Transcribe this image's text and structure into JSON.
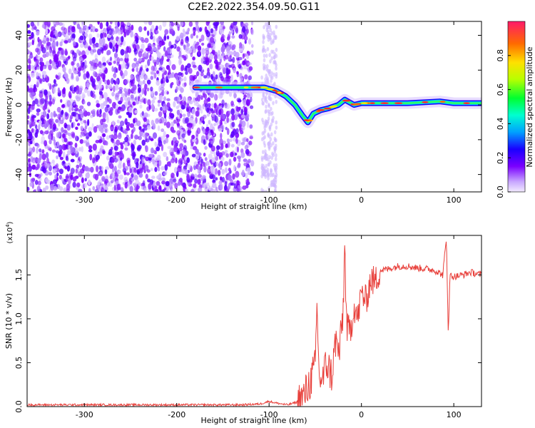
{
  "title": "C2E2.2022.354.09.50.G11",
  "chart_data": [
    {
      "type": "heatmap",
      "name": "spectrogram",
      "xlabel": "Height of straight line (km)",
      "ylabel": "Frequency (Hz)",
      "xlim": [
        -362,
        130
      ],
      "ylim": [
        -50,
        48
      ],
      "xticks": [
        -300,
        -200,
        -100,
        0,
        100
      ],
      "yticks": [
        -40,
        -20,
        0,
        20,
        40
      ],
      "colorbar": {
        "label": "Normalized spectral amplitude",
        "range": [
          0,
          1
        ],
        "ticks": [
          0.0,
          0.2,
          0.4,
          0.6,
          0.8
        ],
        "colormap": "rainbow",
        "low_color": "#f2eaff",
        "high_color": "#ff1a6a"
      },
      "noise_region": [
        -362,
        -118
      ],
      "signal_track": [
        {
          "x": -180,
          "y": 10
        },
        {
          "x": -150,
          "y": 10
        },
        {
          "x": -118,
          "y": 10
        },
        {
          "x": -105,
          "y": 10
        },
        {
          "x": -92,
          "y": 8
        },
        {
          "x": -82,
          "y": 5
        },
        {
          "x": -72,
          "y": 0
        },
        {
          "x": -64,
          "y": -6
        },
        {
          "x": -58,
          "y": -10
        },
        {
          "x": -52,
          "y": -5
        },
        {
          "x": -44,
          "y": -3
        },
        {
          "x": -36,
          "y": -2
        },
        {
          "x": -25,
          "y": 0
        },
        {
          "x": -18,
          "y": 3
        },
        {
          "x": -8,
          "y": 0
        },
        {
          "x": 0,
          "y": 1
        },
        {
          "x": 20,
          "y": 1
        },
        {
          "x": 50,
          "y": 1
        },
        {
          "x": 85,
          "y": 2
        },
        {
          "x": 100,
          "y": 1
        },
        {
          "x": 130,
          "y": 1
        }
      ]
    },
    {
      "type": "line",
      "name": "snr",
      "xlabel": "Height of straight line (km)",
      "ylabel": "SNR (10 * v/v)",
      "scale_label": "(x10",
      "scale_exp": "4",
      "scale_close": ")",
      "xlim": [
        -362,
        130
      ],
      "ylim": [
        0,
        1.95
      ],
      "xticks": [
        -300,
        -200,
        -100,
        0,
        100
      ],
      "yticks": [
        0.0,
        0.5,
        1.0,
        1.5
      ],
      "line_color": "#e8413c",
      "series": [
        {
          "points": [
            [
              -362,
              0.02
            ],
            [
              -300,
              0.02
            ],
            [
              -200,
              0.02
            ],
            [
              -130,
              0.02
            ],
            [
              -110,
              0.03
            ],
            [
              -100,
              0.06
            ],
            [
              -92,
              0.04
            ],
            [
              -80,
              0.02
            ],
            [
              -70,
              0.05
            ],
            [
              -62,
              0.12
            ],
            [
              -55,
              0.3
            ],
            [
              -50,
              0.45
            ],
            [
              -48,
              1.2
            ],
            [
              -46,
              0.35
            ],
            [
              -42,
              0.3
            ],
            [
              -38,
              0.5
            ],
            [
              -32,
              0.35
            ],
            [
              -28,
              0.75
            ],
            [
              -24,
              0.6
            ],
            [
              -20,
              1.05
            ],
            [
              -18,
              1.85
            ],
            [
              -16,
              0.9
            ],
            [
              -12,
              0.85
            ],
            [
              -8,
              1.15
            ],
            [
              -4,
              1.0
            ],
            [
              0,
              1.3
            ],
            [
              5,
              1.2
            ],
            [
              10,
              1.45
            ],
            [
              15,
              1.42
            ],
            [
              20,
              1.55
            ],
            [
              30,
              1.57
            ],
            [
              40,
              1.6
            ],
            [
              50,
              1.6
            ],
            [
              60,
              1.58
            ],
            [
              70,
              1.57
            ],
            [
              80,
              1.55
            ],
            [
              88,
              1.5
            ],
            [
              92,
              1.9
            ],
            [
              94,
              0.85
            ],
            [
              96,
              1.5
            ],
            [
              100,
              1.48
            ],
            [
              110,
              1.5
            ],
            [
              118,
              1.53
            ],
            [
              130,
              1.5
            ]
          ]
        }
      ]
    }
  ]
}
